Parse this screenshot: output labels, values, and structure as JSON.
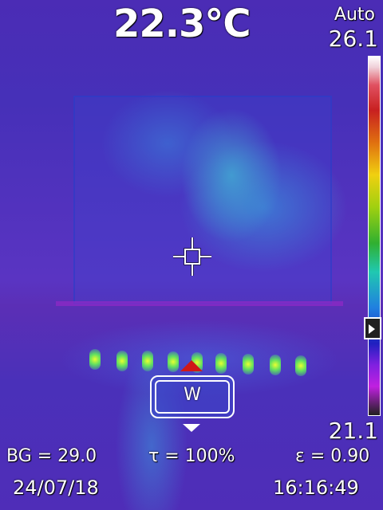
{
  "temperature": {
    "spot": "22.3°C"
  },
  "range": {
    "mode": "Auto",
    "max": "26.1",
    "min": "21.1"
  },
  "palette": {
    "name": "iron-rainbow",
    "top_color": "#ffffff",
    "bottom_color": "#202020"
  },
  "white_balance": {
    "label": "W"
  },
  "params": {
    "background": "BG = 29.0",
    "transmission": "τ = 100%",
    "emissivity": "ε = 0.90"
  },
  "footer": {
    "date": "24/07/18",
    "time": "16:16:49"
  },
  "colors": {
    "accent_red": "#d01818",
    "overlay_text": "#ffffff"
  }
}
